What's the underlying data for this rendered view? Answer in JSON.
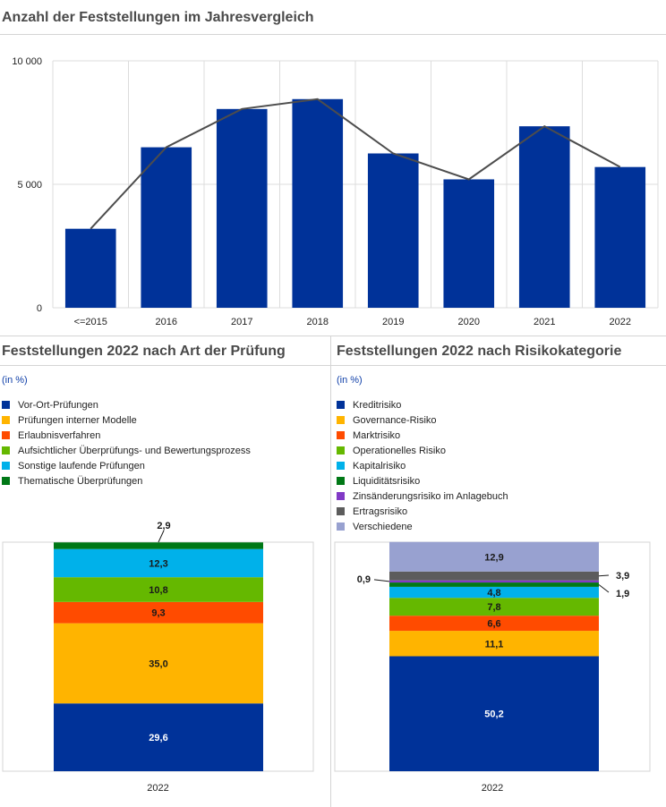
{
  "colors": {
    "dark_blue": "#003299",
    "yellow": "#ffb400",
    "orange": "#ff4b00",
    "light_green": "#65b800",
    "light_blue": "#00b1ea",
    "dark_green": "#007816",
    "purple": "#8139c6",
    "grey": "#5c5c5c",
    "lavender": "#98a1d0",
    "trend_line": "#4d4d4d"
  },
  "top_chart": {
    "title": "Anzahl der Feststellungen im Jahresvergleich"
  },
  "left_panel": {
    "title": "Feststellungen 2022 nach Art der Prüfung",
    "unit": "(in %)"
  },
  "right_panel": {
    "title": "Feststellungen 2022 nach Risikokategorie",
    "unit": "(in %)"
  },
  "chart_data": [
    {
      "type": "bar",
      "title": "Anzahl der Feststellungen im Jahresvergleich",
      "categories": [
        "<=2015",
        "2016",
        "2017",
        "2018",
        "2019",
        "2020",
        "2021",
        "2022"
      ],
      "values": [
        3200,
        6500,
        8050,
        8450,
        6250,
        5200,
        7350,
        5700
      ],
      "ylim": [
        0,
        10000
      ],
      "yticks": [
        "0",
        "5 000",
        "10 000"
      ],
      "ytick_values": [
        0,
        5000,
        10000
      ],
      "grid": true,
      "trend_line": true,
      "bar_color": "#003299"
    },
    {
      "type": "bar",
      "stacked": true,
      "title": "Feststellungen 2022 nach Art der Prüfung",
      "categories": [
        "2022"
      ],
      "ylim": [
        0,
        100
      ],
      "legend_position": "top",
      "series": [
        {
          "name": "Vor-Ort-Prüfungen",
          "values": [
            29.6
          ],
          "label": "29,6",
          "color": "#003299"
        },
        {
          "name": "Prüfungen interner Modelle",
          "values": [
            35.0
          ],
          "label": "35,0",
          "color": "#ffb400"
        },
        {
          "name": "Erlaubnisverfahren",
          "values": [
            9.3
          ],
          "label": "9,3",
          "color": "#ff4b00"
        },
        {
          "name": "Aufsichtlicher Überprüfungs- und Bewertungsprozess",
          "values": [
            10.8
          ],
          "label": "10,8",
          "color": "#65b800"
        },
        {
          "name": "Sonstige laufende Prüfungen",
          "values": [
            12.3
          ],
          "label": "12,3",
          "color": "#00b1ea"
        },
        {
          "name": "Thematische Überprüfungen",
          "values": [
            2.9
          ],
          "label": "2,9",
          "color": "#007816"
        }
      ]
    },
    {
      "type": "bar",
      "stacked": true,
      "title": "Feststellungen 2022 nach Risikokategorie",
      "categories": [
        "2022"
      ],
      "ylim": [
        0,
        100
      ],
      "legend_position": "top",
      "series": [
        {
          "name": "Kreditrisiko",
          "values": [
            50.2
          ],
          "label": "50,2",
          "color": "#003299"
        },
        {
          "name": "Governance-Risiko",
          "values": [
            11.1
          ],
          "label": "11,1",
          "color": "#ffb400"
        },
        {
          "name": "Marktrisiko",
          "values": [
            6.6
          ],
          "label": "6,6",
          "color": "#ff4b00"
        },
        {
          "name": "Operationelles Risiko",
          "values": [
            7.8
          ],
          "label": "7,8",
          "color": "#65b800"
        },
        {
          "name": "Kapitalrisiko",
          "values": [
            4.8
          ],
          "label": "4,8",
          "color": "#00b1ea"
        },
        {
          "name": "Liquiditätsrisiko",
          "values": [
            1.9
          ],
          "label": "1,9",
          "color": "#007816"
        },
        {
          "name": "Zinsänderungsrisiko im Anlagebuch",
          "values": [
            0.9
          ],
          "label": "0,9",
          "color": "#8139c6"
        },
        {
          "name": "Ertragsrisiko",
          "values": [
            3.9
          ],
          "label": "3,9",
          "color": "#5c5c5c"
        },
        {
          "name": "Verschiedene",
          "values": [
            12.9
          ],
          "label": "12,9",
          "color": "#98a1d0"
        }
      ]
    }
  ]
}
